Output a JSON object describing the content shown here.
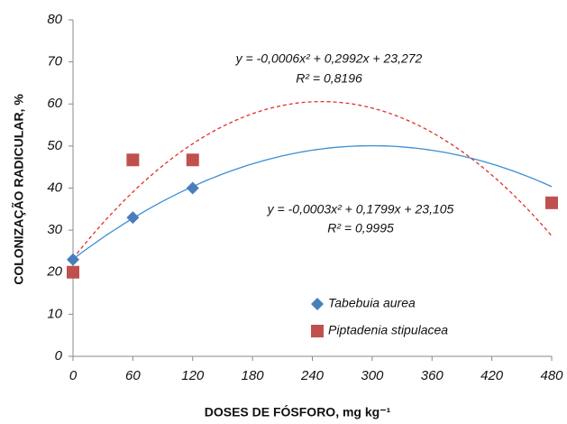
{
  "chart_data": {
    "type": "scatter",
    "x_label": "DOSES DE FÓSFORO, mg kg⁻¹",
    "y_label": "COLONIZAÇÃO  RADICULAR, %",
    "x": [
      0,
      60,
      120,
      480
    ],
    "series": [
      {
        "name": "Tabebuia aurea",
        "color": "#4a7ebb",
        "marker": "diamond",
        "values": [
          23,
          33,
          40,
          36.5
        ],
        "trendline": {
          "equation": "y = -0,0003x² + 0,1799x + 23,105",
          "r2": "R² = 0,9995",
          "coefficients": [
            -0.0003,
            0.1799,
            23.105
          ],
          "dashed": false,
          "color": "#3b8fd6"
        }
      },
      {
        "name": "Piptadenia stipulacea",
        "color": "#c0504d",
        "marker": "square",
        "values": [
          20,
          46.7,
          46.7,
          36.5
        ],
        "trendline": {
          "equation": "y = -0,0006x² + 0,2992x + 23,272",
          "r2": "R² = 0,8196",
          "coefficients": [
            -0.0006,
            0.2992,
            23.272
          ],
          "dashed": true,
          "color": "#e0302a"
        }
      }
    ],
    "xlim": [
      0,
      480
    ],
    "xticks": [
      0,
      60,
      120,
      180,
      240,
      300,
      360,
      420,
      480
    ],
    "ylim": [
      0,
      80
    ],
    "yticks": [
      0,
      10,
      20,
      30,
      40,
      50,
      60,
      70,
      80
    ]
  }
}
